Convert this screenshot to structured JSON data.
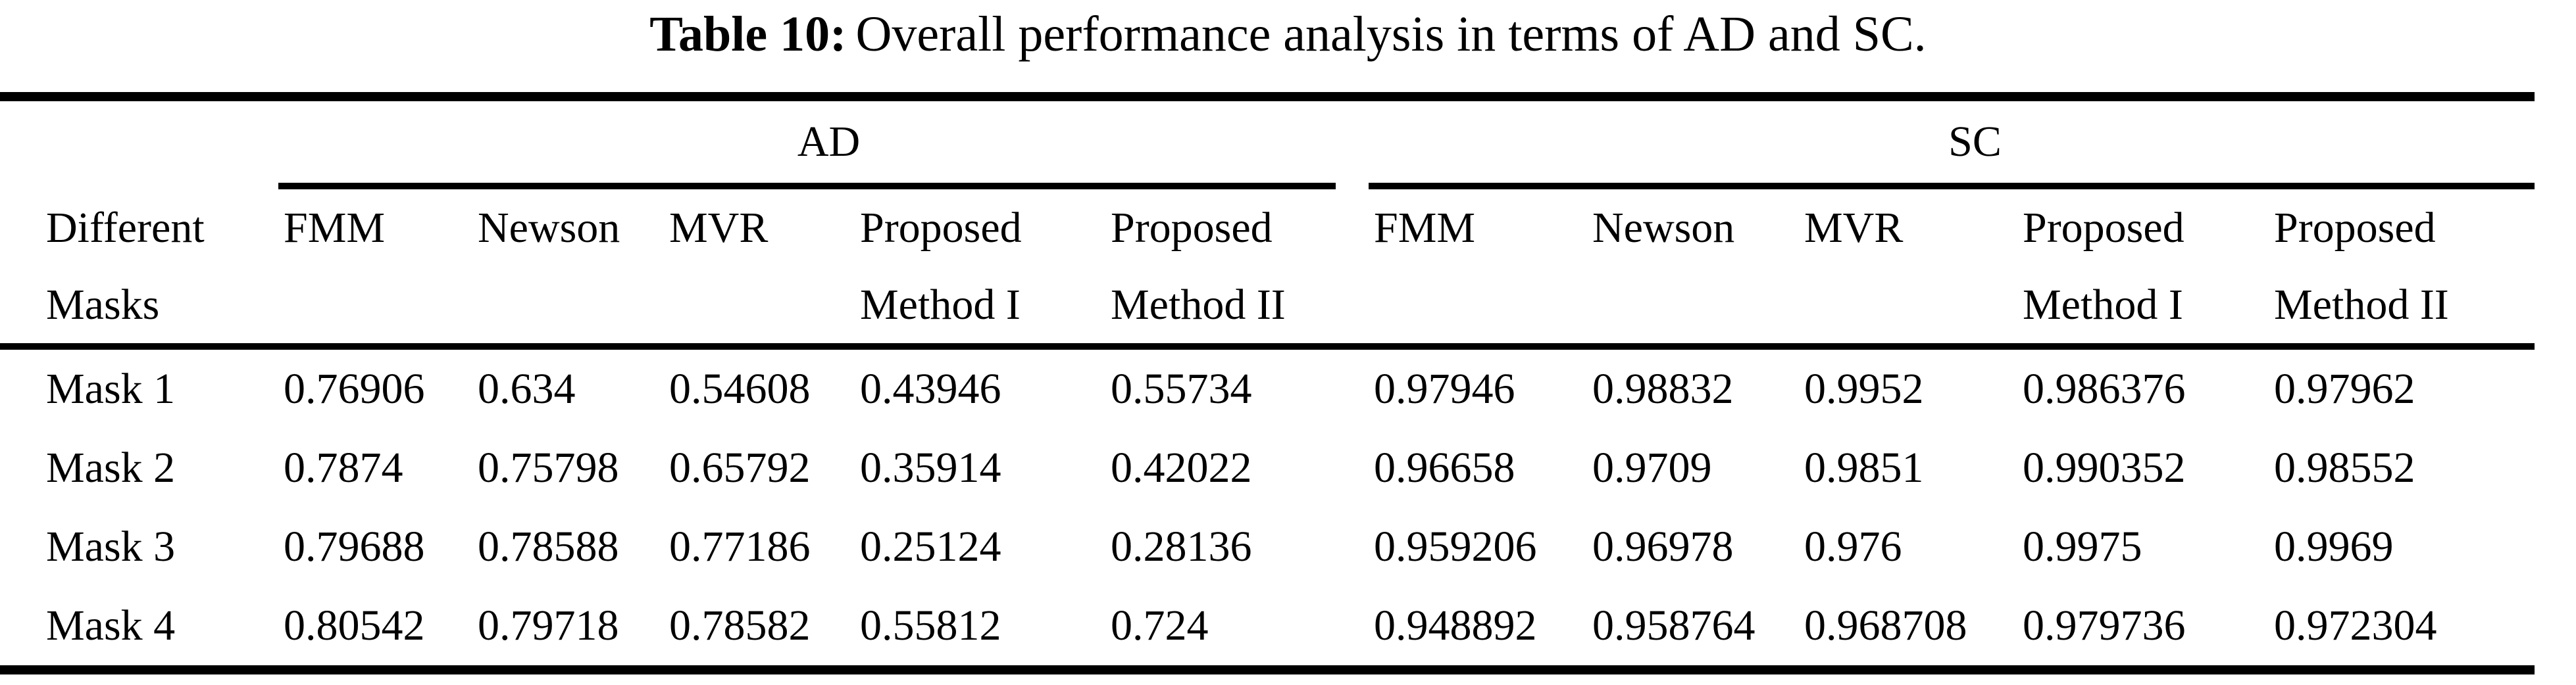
{
  "page": {
    "background": "#ffffff",
    "text_color": "#000000"
  },
  "title": {
    "label": "Table 10:",
    "text": "Overall performance analysis in terms of AD and SC."
  },
  "table": {
    "groups": [
      {
        "label": "AD"
      },
      {
        "label": "SC"
      }
    ],
    "stub_header": {
      "line1": "Different",
      "line2": "Masks"
    },
    "columns": [
      {
        "line1": "FMM",
        "line2": ""
      },
      {
        "line1": "Newson",
        "line2": ""
      },
      {
        "line1": "MVR",
        "line2": ""
      },
      {
        "line1": "Proposed",
        "line2": "Method I"
      },
      {
        "line1": "Proposed",
        "line2": "Method II"
      },
      {
        "line1": "FMM",
        "line2": ""
      },
      {
        "line1": "Newson",
        "line2": ""
      },
      {
        "line1": "MVR",
        "line2": ""
      },
      {
        "line1": "Proposed",
        "line2": "Method I"
      },
      {
        "line1": "Proposed",
        "line2": "Method II"
      }
    ],
    "rows": [
      {
        "label": "Mask 1",
        "values": [
          "0.76906",
          "0.634",
          "0.54608",
          "0.43946",
          "0.55734",
          "0.97946",
          "0.98832",
          "0.9952",
          "0.986376",
          "0.97962"
        ]
      },
      {
        "label": "Mask 2",
        "values": [
          "0.7874",
          "0.75798",
          "0.65792",
          "0.35914",
          "0.42022",
          "0.96658",
          "0.9709",
          "0.9851",
          "0.990352",
          "0.98552"
        ]
      },
      {
        "label": "Mask 3",
        "values": [
          "0.79688",
          "0.78588",
          "0.77186",
          "0.25124",
          "0.28136",
          "0.959206",
          "0.96978",
          "0.976",
          "0.9975",
          "0.9969"
        ]
      },
      {
        "label": "Mask 4",
        "values": [
          "0.80542",
          "0.79718",
          "0.78582",
          "0.55812",
          "0.724",
          "0.948892",
          "0.958764",
          "0.968708",
          "0.979736",
          "0.972304"
        ]
      }
    ]
  }
}
